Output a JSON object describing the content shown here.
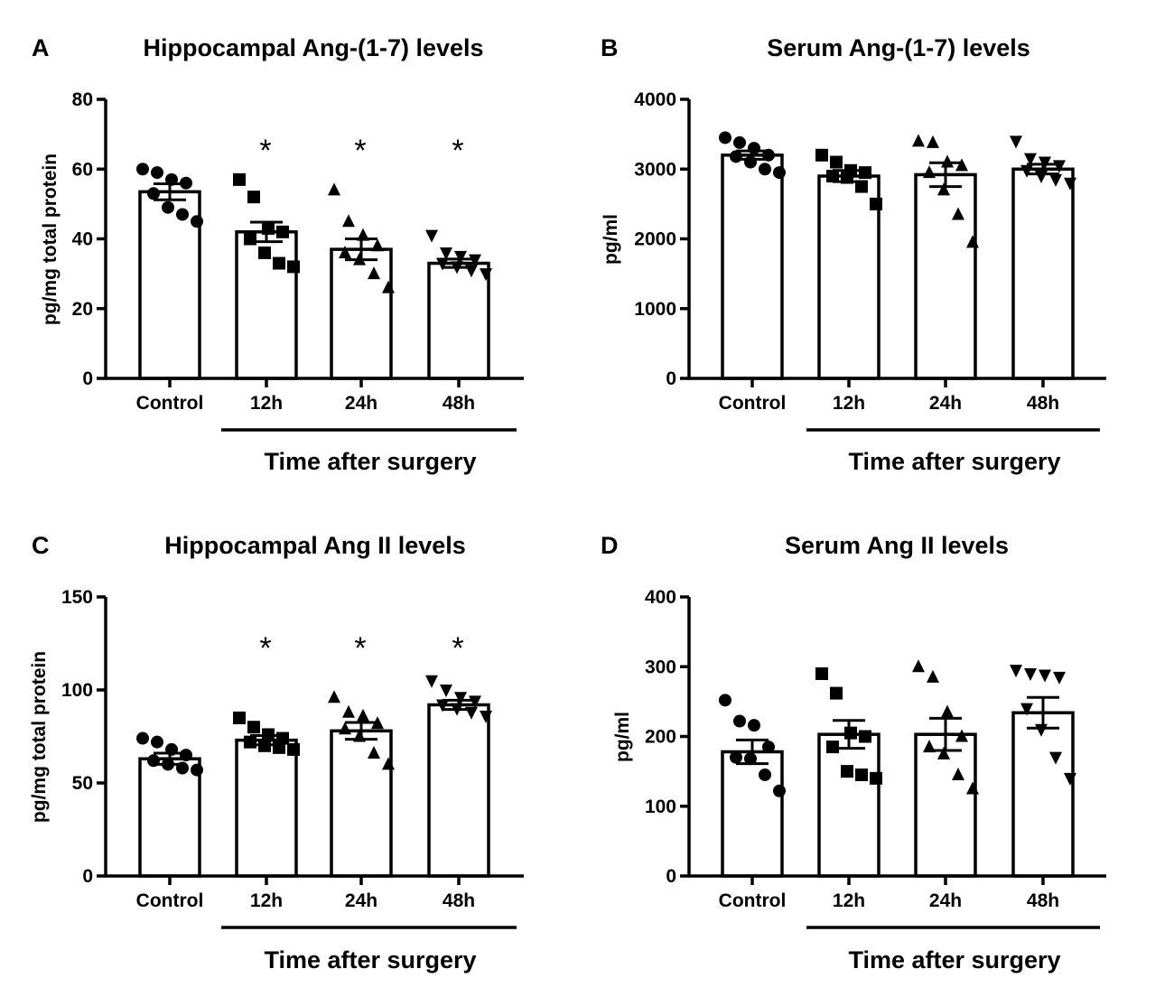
{
  "chart_data": [
    {
      "panel": "A",
      "type": "bar",
      "title": "Hippocampal Ang-(1-7) levels",
      "ylabel": "pg/mg total protein",
      "xlabel": "Time after surgery",
      "categories": [
        "Control",
        "12h",
        "24h",
        "48h"
      ],
      "values": [
        53.5,
        42,
        37,
        33
      ],
      "error": [
        2.3,
        2.8,
        3.0,
        1.2
      ],
      "markers": [
        "circle",
        "square",
        "triangle-up",
        "triangle-down"
      ],
      "points": [
        [
          60,
          59,
          57,
          56,
          53,
          49,
          47,
          45
        ],
        [
          57,
          52,
          43,
          42,
          40,
          36,
          33,
          32
        ],
        [
          54,
          45,
          41,
          38,
          36,
          34,
          30,
          26
        ],
        [
          41,
          36,
          35,
          34,
          33,
          32,
          31,
          30
        ]
      ],
      "significance": [
        "",
        "*",
        "*",
        "*"
      ],
      "ylim": [
        0,
        80
      ],
      "yticks": [
        0,
        20,
        40,
        60,
        80
      ]
    },
    {
      "panel": "B",
      "type": "bar",
      "title": "Serum Ang-(1-7)  levels",
      "ylabel": "pg/ml",
      "xlabel": "Time after surgery",
      "categories": [
        "Control",
        "12h",
        "24h",
        "48h"
      ],
      "values": [
        3200,
        2900,
        2920,
        3000
      ],
      "error": [
        60,
        80,
        170,
        70
      ],
      "markers": [
        "circle",
        "square",
        "triangle-up",
        "triangle-down"
      ],
      "points": [
        [
          3450,
          3380,
          3300,
          3200,
          3180,
          3100,
          3000,
          2950
        ],
        [
          3200,
          3100,
          2980,
          2950,
          2900,
          2880,
          2750,
          2500
        ],
        [
          3400,
          3380,
          3100,
          3050,
          2950,
          2700,
          2350,
          1950
        ],
        [
          3400,
          3150,
          3100,
          3050,
          2980,
          2900,
          2850,
          2800
        ]
      ],
      "significance": [
        "",
        "",
        "",
        ""
      ],
      "ylim": [
        0,
        4000
      ],
      "yticks": [
        0,
        1000,
        2000,
        3000,
        4000
      ]
    },
    {
      "panel": "C",
      "type": "bar",
      "title": "Hippocampal Ang II levels",
      "ylabel": "pg/mg total protein",
      "xlabel": "Time after surgery",
      "categories": [
        "Control",
        "12h",
        "24h",
        "48h"
      ],
      "values": [
        63,
        73,
        78,
        92
      ],
      "error": [
        3,
        2.5,
        4.5,
        2.5
      ],
      "markers": [
        "circle",
        "square",
        "triangle-up",
        "triangle-down"
      ],
      "points": [
        [
          74,
          72,
          68,
          65,
          62,
          60,
          58,
          57
        ],
        [
          85,
          80,
          76,
          74,
          72,
          70,
          69,
          68
        ],
        [
          96,
          88,
          86,
          82,
          79,
          75,
          66,
          60
        ],
        [
          105,
          100,
          96,
          94,
          92,
          90,
          88,
          86
        ]
      ],
      "significance": [
        "",
        "*",
        "*",
        "*"
      ],
      "ylim": [
        0,
        150
      ],
      "yticks": [
        0,
        50,
        100,
        150
      ]
    },
    {
      "panel": "D",
      "type": "bar",
      "title": "Serum Ang II levels",
      "ylabel": "pg/ml",
      "xlabel": "Time after surgery",
      "categories": [
        "Control",
        "12h",
        "24h",
        "48h"
      ],
      "values": [
        178,
        203,
        203,
        234
      ],
      "error": [
        17,
        20,
        23,
        22
      ],
      "markers": [
        "circle",
        "square",
        "triangle-up",
        "triangle-down"
      ],
      "points": [
        [
          252,
          222,
          216,
          185,
          170,
          168,
          145,
          122
        ],
        [
          290,
          262,
          205,
          200,
          185,
          150,
          145,
          140
        ],
        [
          300,
          285,
          235,
          200,
          185,
          175,
          145,
          125
        ],
        [
          295,
          290,
          288,
          285,
          240,
          210,
          170,
          140
        ]
      ],
      "significance": [
        "",
        "",
        "",
        ""
      ],
      "ylim": [
        0,
        400
      ],
      "yticks": [
        0,
        100,
        200,
        300,
        400
      ]
    }
  ]
}
